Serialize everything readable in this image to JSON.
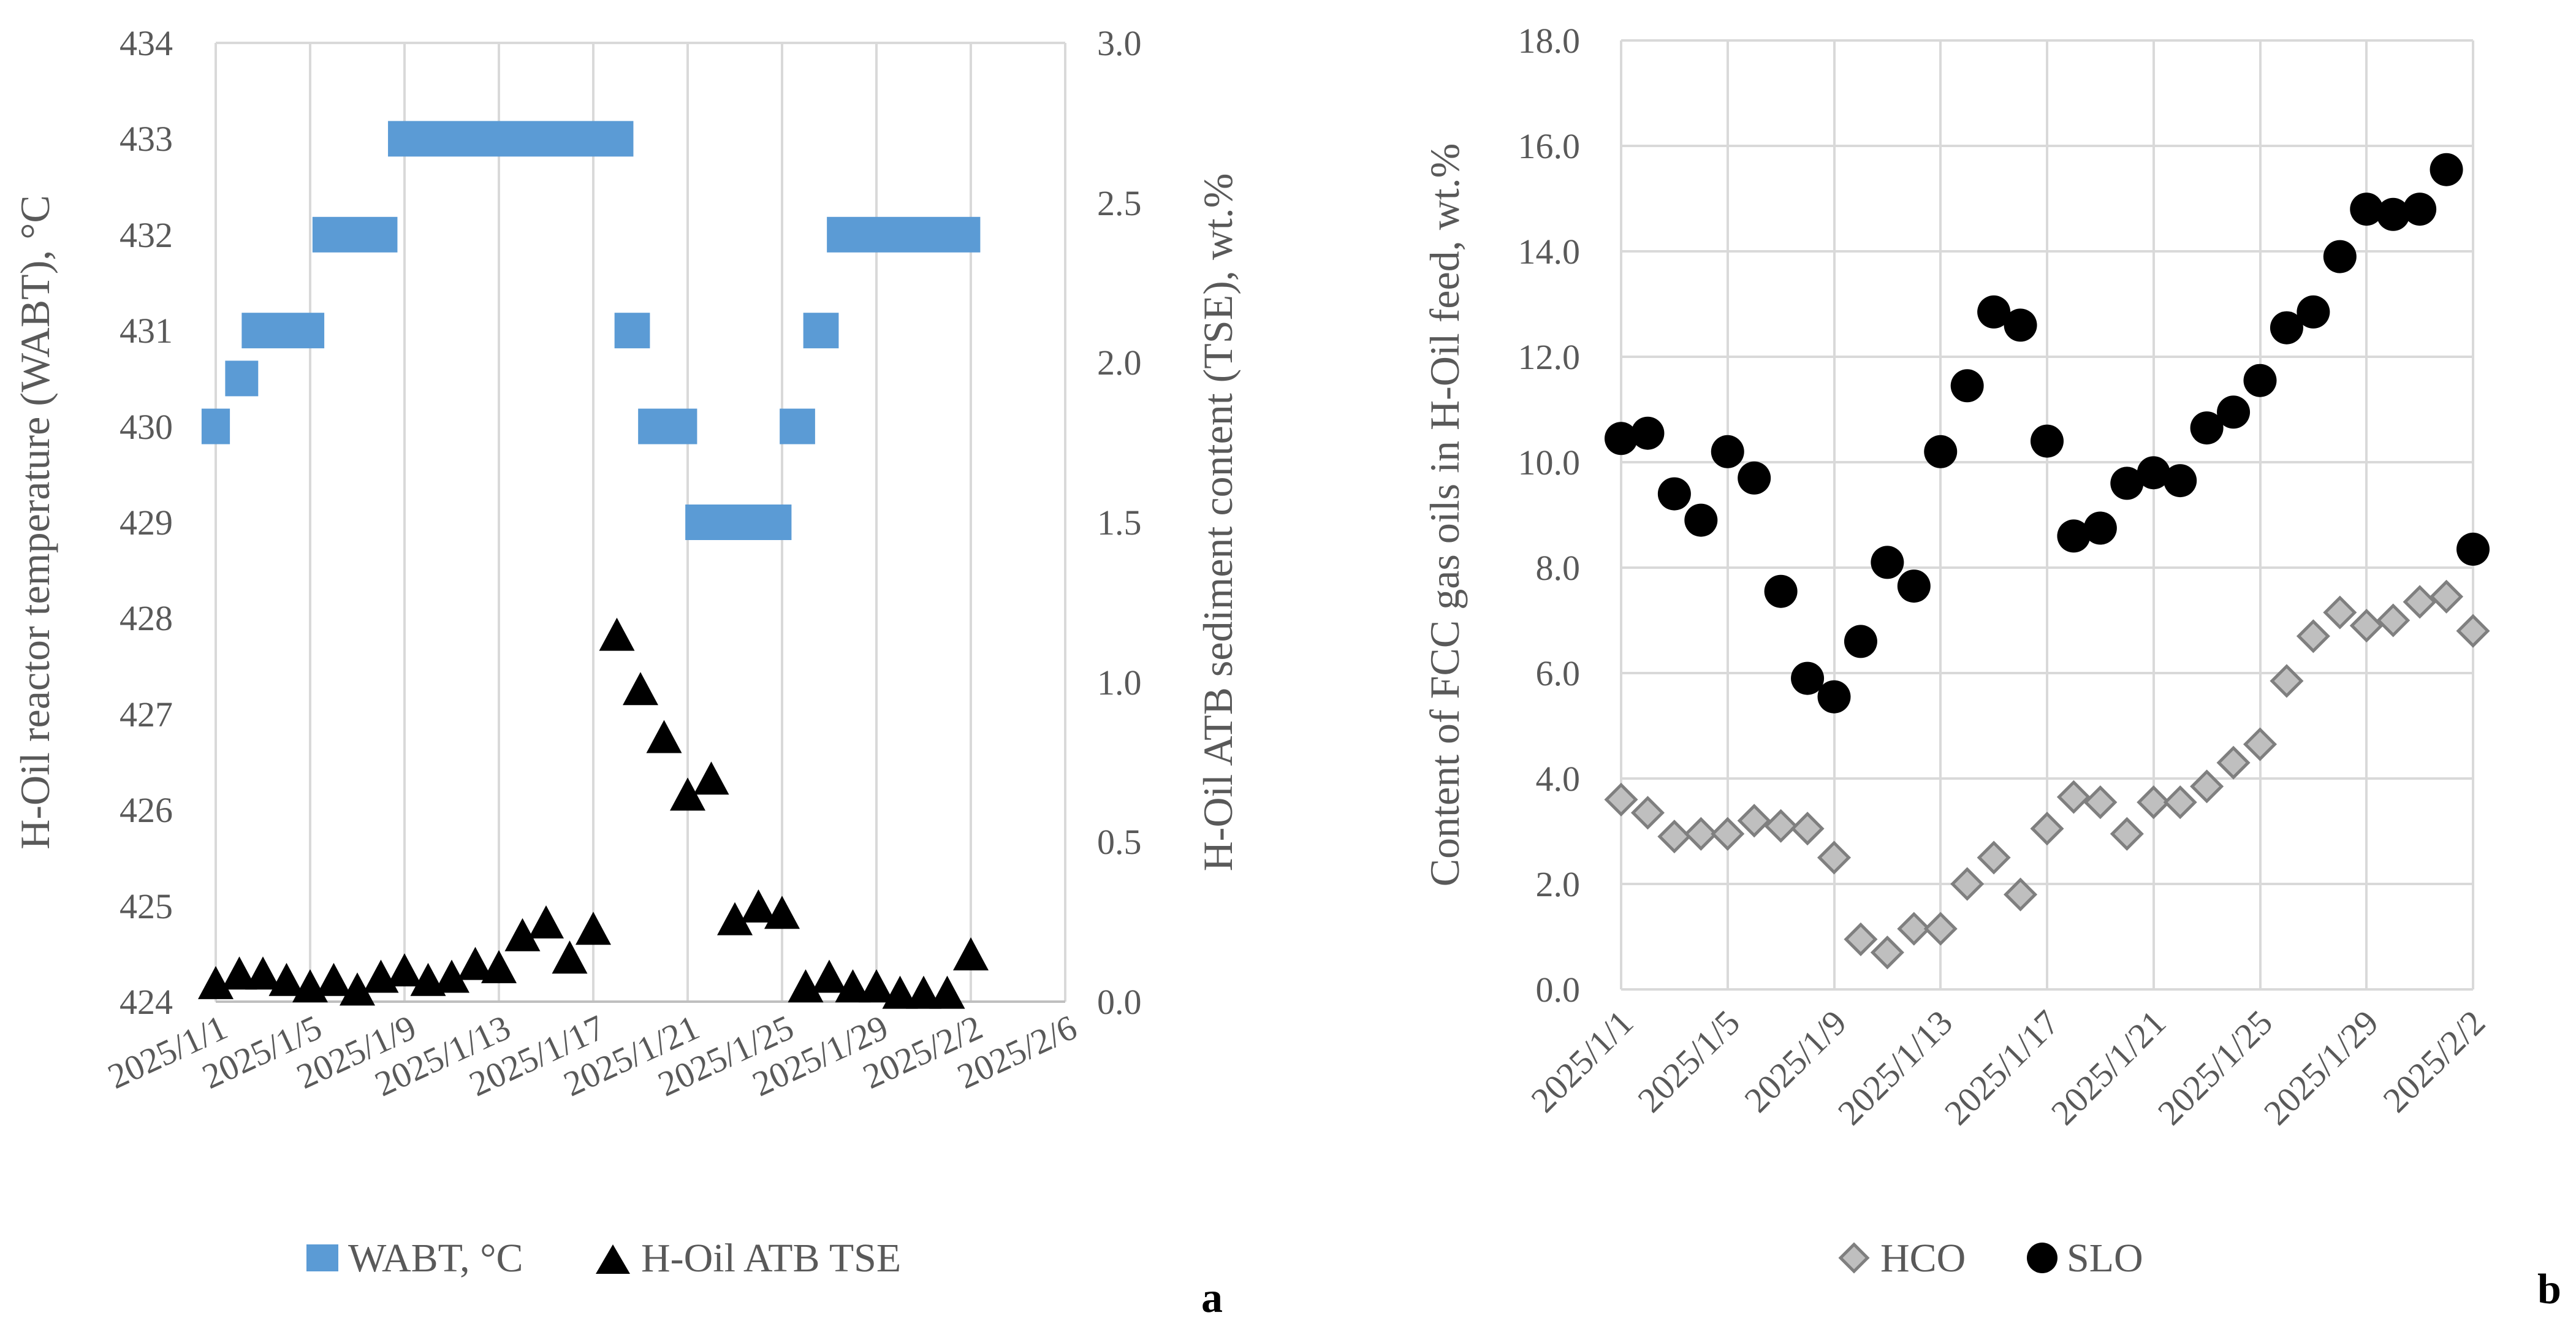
{
  "chart_data": [
    {
      "panel_label": "a",
      "type": "scatter",
      "x_ticks": [
        "2025/1/1",
        "2025/1/5",
        "2025/1/9",
        "2025/1/13",
        "2025/1/17",
        "2025/1/21",
        "2025/1/25",
        "2025/1/29",
        "2025/2/2",
        "2025/2/6"
      ],
      "xlim_day": [
        0,
        36
      ],
      "ylabel": "H-Oil reactor temperature (WABT), °C",
      "ylim": [
        424,
        434
      ],
      "y_ticks": [
        "424",
        "425",
        "426",
        "427",
        "428",
        "429",
        "430",
        "431",
        "432",
        "433",
        "434"
      ],
      "y2label": "H-Oil ATB sediment content (TSE), wt.%",
      "y2lim": [
        0,
        3
      ],
      "y2_ticks": [
        "0.0",
        "0.5",
        "1.0",
        "1.5",
        "2.0",
        "2.5",
        "3.0"
      ],
      "series": [
        {
          "name": "WABT, °C",
          "marker": "bar-segment",
          "color": "#5b9bd5",
          "axis": "left",
          "segments": [
            {
              "start_day": -0.6,
              "end_day": 0.6,
              "value": 430
            },
            {
              "start_day": 0.4,
              "end_day": 1.8,
              "value": 430.5
            },
            {
              "start_day": 1.1,
              "end_day": 4.6,
              "value": 431
            },
            {
              "start_day": 4.1,
              "end_day": 7.7,
              "value": 432
            },
            {
              "start_day": 7.3,
              "end_day": 17.7,
              "value": 433
            },
            {
              "start_day": 16.9,
              "end_day": 18.4,
              "value": 431
            },
            {
              "start_day": 17.9,
              "end_day": 20.4,
              "value": 430
            },
            {
              "start_day": 19.9,
              "end_day": 24.4,
              "value": 429
            },
            {
              "start_day": 23.9,
              "end_day": 25.4,
              "value": 430
            },
            {
              "start_day": 24.9,
              "end_day": 26.4,
              "value": 431
            },
            {
              "start_day": 25.9,
              "end_day": 32.4,
              "value": 432
            }
          ]
        },
        {
          "name": "H-Oil ATB TSE",
          "marker": "triangle",
          "color": "#000000",
          "axis": "right",
          "points": [
            {
              "day": 0,
              "value": 0.05
            },
            {
              "day": 1,
              "value": 0.08
            },
            {
              "day": 2,
              "value": 0.08
            },
            {
              "day": 3,
              "value": 0.06
            },
            {
              "day": 4,
              "value": 0.04
            },
            {
              "day": 5,
              "value": 0.06
            },
            {
              "day": 6,
              "value": 0.03
            },
            {
              "day": 7,
              "value": 0.07
            },
            {
              "day": 8,
              "value": 0.09
            },
            {
              "day": 9,
              "value": 0.06
            },
            {
              "day": 10,
              "value": 0.07
            },
            {
              "day": 11,
              "value": 0.11
            },
            {
              "day": 12,
              "value": 0.1
            },
            {
              "day": 13,
              "value": 0.2
            },
            {
              "day": 14,
              "value": 0.24
            },
            {
              "day": 15,
              "value": 0.13
            },
            {
              "day": 16,
              "value": 0.22
            },
            {
              "day": 17,
              "value": 1.14
            },
            {
              "day": 18,
              "value": 0.97
            },
            {
              "day": 19,
              "value": 0.82
            },
            {
              "day": 20,
              "value": 0.64
            },
            {
              "day": 21,
              "value": 0.69
            },
            {
              "day": 22,
              "value": 0.25
            },
            {
              "day": 23,
              "value": 0.29
            },
            {
              "day": 24,
              "value": 0.27
            },
            {
              "day": 25,
              "value": 0.04
            },
            {
              "day": 26,
              "value": 0.07
            },
            {
              "day": 27,
              "value": 0.04
            },
            {
              "day": 28,
              "value": 0.04
            },
            {
              "day": 29,
              "value": 0.02
            },
            {
              "day": 30,
              "value": 0.02
            },
            {
              "day": 31,
              "value": 0.02
            },
            {
              "day": 32,
              "value": 0.14
            }
          ]
        }
      ]
    },
    {
      "panel_label": "b",
      "type": "scatter",
      "x_ticks": [
        "2025/1/1",
        "2025/1/5",
        "2025/1/9",
        "2025/1/13",
        "2025/1/17",
        "2025/1/21",
        "2025/1/25",
        "2025/1/29",
        "2025/2/2"
      ],
      "xlim_day": [
        0,
        32
      ],
      "ylabel": "Content of FCC gas oils in H-Oil feed, wt.%",
      "ylim": [
        0,
        18
      ],
      "y_ticks": [
        "0.0",
        "2.0",
        "4.0",
        "6.0",
        "8.0",
        "10.0",
        "12.0",
        "14.0",
        "16.0",
        "18.0"
      ],
      "series": [
        {
          "name": "HCO",
          "marker": "diamond",
          "color": "#bfbfbf",
          "points": [
            {
              "day": 0,
              "value": 3.6
            },
            {
              "day": 1,
              "value": 3.35
            },
            {
              "day": 2,
              "value": 2.9
            },
            {
              "day": 3,
              "value": 2.95
            },
            {
              "day": 4,
              "value": 2.95
            },
            {
              "day": 5,
              "value": 3.2
            },
            {
              "day": 6,
              "value": 3.1
            },
            {
              "day": 7,
              "value": 3.05
            },
            {
              "day": 8,
              "value": 2.5
            },
            {
              "day": 9,
              "value": 0.95
            },
            {
              "day": 10,
              "value": 0.7
            },
            {
              "day": 11,
              "value": 1.15
            },
            {
              "day": 12,
              "value": 1.15
            },
            {
              "day": 13,
              "value": 2.0
            },
            {
              "day": 14,
              "value": 2.5
            },
            {
              "day": 15,
              "value": 1.8
            },
            {
              "day": 16,
              "value": 3.05
            },
            {
              "day": 17,
              "value": 3.65
            },
            {
              "day": 18,
              "value": 3.55
            },
            {
              "day": 19,
              "value": 2.95
            },
            {
              "day": 20,
              "value": 3.55
            },
            {
              "day": 21,
              "value": 3.55
            },
            {
              "day": 22,
              "value": 3.85
            },
            {
              "day": 23,
              "value": 4.3
            },
            {
              "day": 24,
              "value": 4.65
            },
            {
              "day": 25,
              "value": 5.85
            },
            {
              "day": 26,
              "value": 6.7
            },
            {
              "day": 27,
              "value": 7.15
            },
            {
              "day": 28,
              "value": 6.9
            },
            {
              "day": 29,
              "value": 7.0
            },
            {
              "day": 30,
              "value": 7.35
            },
            {
              "day": 31,
              "value": 7.45
            },
            {
              "day": 32,
              "value": 6.8
            }
          ]
        },
        {
          "name": "SLO",
          "marker": "circle",
          "color": "#000000",
          "points": [
            {
              "day": 0,
              "value": 10.45
            },
            {
              "day": 1,
              "value": 10.55
            },
            {
              "day": 2,
              "value": 9.4
            },
            {
              "day": 3,
              "value": 8.9
            },
            {
              "day": 4,
              "value": 10.2
            },
            {
              "day": 5,
              "value": 9.7
            },
            {
              "day": 6,
              "value": 7.55
            },
            {
              "day": 7,
              "value": 5.9
            },
            {
              "day": 8,
              "value": 5.55
            },
            {
              "day": 9,
              "value": 6.6
            },
            {
              "day": 10,
              "value": 8.1
            },
            {
              "day": 11,
              "value": 7.65
            },
            {
              "day": 12,
              "value": 10.2
            },
            {
              "day": 13,
              "value": 11.45
            },
            {
              "day": 14,
              "value": 12.85
            },
            {
              "day": 15,
              "value": 12.6
            },
            {
              "day": 16,
              "value": 10.4
            },
            {
              "day": 17,
              "value": 8.6
            },
            {
              "day": 18,
              "value": 8.75
            },
            {
              "day": 19,
              "value": 9.6
            },
            {
              "day": 20,
              "value": 9.8
            },
            {
              "day": 21,
              "value": 9.65
            },
            {
              "day": 22,
              "value": 10.65
            },
            {
              "day": 23,
              "value": 10.95
            },
            {
              "day": 24,
              "value": 11.55
            },
            {
              "day": 25,
              "value": 12.55
            },
            {
              "day": 26,
              "value": 12.85
            },
            {
              "day": 27,
              "value": 13.9
            },
            {
              "day": 28,
              "value": 14.8
            },
            {
              "day": 29,
              "value": 14.7
            },
            {
              "day": 30,
              "value": 14.8
            },
            {
              "day": 31,
              "value": 15.55
            },
            {
              "day": 32,
              "value": 8.35
            }
          ]
        }
      ]
    }
  ]
}
